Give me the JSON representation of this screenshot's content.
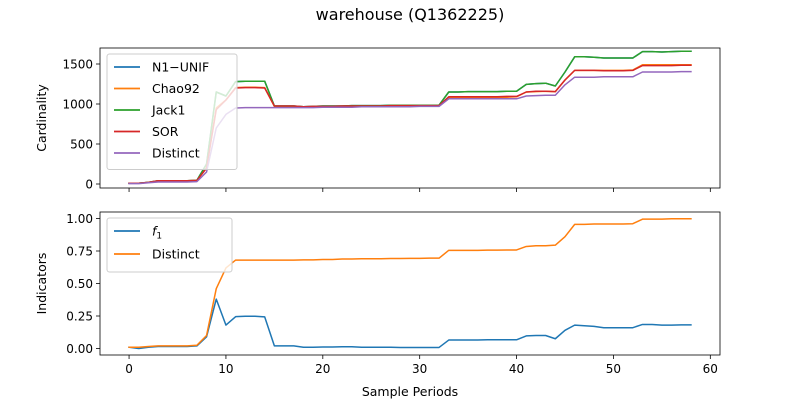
{
  "figure": {
    "title": "warehouse (Q1362225)"
  },
  "chart_data": [
    {
      "type": "line",
      "title": "",
      "xlabel": "",
      "ylabel": "Cardinality",
      "xlim": [
        -3,
        61
      ],
      "ylim": [
        -50,
        1700
      ],
      "xticks": [
        0,
        10,
        20,
        30,
        40,
        50,
        60
      ],
      "xticklabels": [
        "",
        "",
        "",
        "",
        "",
        "",
        ""
      ],
      "yticks": [
        0,
        500,
        1000,
        1500
      ],
      "yticklabels": [
        "0",
        "500",
        "1000",
        "1500"
      ],
      "legend_position": "upper-left",
      "x": [
        0,
        1,
        2,
        3,
        4,
        5,
        6,
        7,
        8,
        9,
        10,
        11,
        12,
        13,
        14,
        15,
        16,
        17,
        18,
        19,
        20,
        21,
        22,
        23,
        24,
        25,
        26,
        27,
        28,
        29,
        30,
        31,
        32,
        33,
        34,
        35,
        36,
        37,
        38,
        39,
        40,
        41,
        42,
        43,
        44,
        45,
        46,
        47,
        48,
        49,
        50,
        51,
        52,
        53,
        54,
        55,
        56,
        57,
        58
      ],
      "series": [
        {
          "name": "N1−UNIF",
          "color": "#1f77b4",
          "values": [
            10,
            10,
            20,
            40,
            40,
            40,
            40,
            45,
            250,
            1150,
            1100,
            1280,
            1285,
            1285,
            1285,
            975,
            975,
            975,
            965,
            970,
            975,
            975,
            975,
            980,
            980,
            980,
            980,
            985,
            985,
            985,
            985,
            985,
            985,
            1150,
            1150,
            1155,
            1155,
            1155,
            1155,
            1160,
            1160,
            1245,
            1255,
            1260,
            1225,
            1400,
            1590,
            1590,
            1585,
            1575,
            1575,
            1575,
            1575,
            1655,
            1655,
            1650,
            1655,
            1660,
            1660
          ]
        },
        {
          "name": "Chao92",
          "color": "#ff7f0e",
          "values": [
            10,
            10,
            20,
            40,
            40,
            40,
            40,
            45,
            200,
            950,
            1050,
            1205,
            1210,
            1210,
            1205,
            970,
            970,
            970,
            965,
            965,
            970,
            970,
            970,
            975,
            975,
            975,
            975,
            975,
            975,
            975,
            975,
            975,
            975,
            1085,
            1085,
            1085,
            1085,
            1085,
            1085,
            1085,
            1090,
            1150,
            1155,
            1160,
            1155,
            1300,
            1420,
            1420,
            1420,
            1420,
            1420,
            1420,
            1425,
            1490,
            1490,
            1490,
            1490,
            1490,
            1490
          ]
        },
        {
          "name": "Jack1",
          "color": "#2ca02c",
          "values": [
            10,
            10,
            20,
            40,
            40,
            40,
            40,
            45,
            250,
            1150,
            1100,
            1280,
            1285,
            1285,
            1285,
            975,
            975,
            975,
            965,
            970,
            975,
            975,
            975,
            980,
            980,
            980,
            980,
            985,
            985,
            985,
            985,
            985,
            985,
            1150,
            1150,
            1155,
            1155,
            1155,
            1155,
            1160,
            1160,
            1245,
            1255,
            1260,
            1225,
            1400,
            1590,
            1590,
            1585,
            1575,
            1575,
            1575,
            1575,
            1655,
            1655,
            1650,
            1655,
            1660,
            1660
          ]
        },
        {
          "name": "SOR",
          "color": "#d62728",
          "values": [
            10,
            10,
            20,
            40,
            40,
            40,
            40,
            45,
            200,
            930,
            1050,
            1200,
            1205,
            1205,
            1200,
            975,
            975,
            975,
            965,
            970,
            970,
            970,
            975,
            975,
            975,
            975,
            975,
            980,
            980,
            980,
            980,
            980,
            980,
            1090,
            1090,
            1090,
            1090,
            1090,
            1090,
            1095,
            1095,
            1150,
            1160,
            1160,
            1155,
            1300,
            1420,
            1420,
            1420,
            1415,
            1415,
            1415,
            1420,
            1480,
            1480,
            1480,
            1480,
            1485,
            1485
          ]
        },
        {
          "name": "Distinct",
          "color": "#9467bd",
          "values": [
            5,
            5,
            15,
            25,
            25,
            25,
            25,
            30,
            150,
            700,
            870,
            950,
            955,
            955,
            955,
            955,
            955,
            955,
            955,
            955,
            960,
            960,
            960,
            960,
            965,
            965,
            965,
            965,
            965,
            965,
            970,
            970,
            970,
            1065,
            1065,
            1065,
            1065,
            1065,
            1065,
            1065,
            1065,
            1100,
            1105,
            1110,
            1110,
            1240,
            1335,
            1335,
            1335,
            1340,
            1340,
            1340,
            1340,
            1400,
            1400,
            1400,
            1400,
            1405,
            1405
          ]
        }
      ]
    },
    {
      "type": "line",
      "title": "",
      "xlabel": "Sample Periods",
      "ylabel": "Indicators",
      "xlim": [
        -3,
        61
      ],
      "ylim": [
        -0.05,
        1.05
      ],
      "xticks": [
        0,
        10,
        20,
        30,
        40,
        50,
        60
      ],
      "xticklabels": [
        "0",
        "10",
        "20",
        "30",
        "40",
        "50",
        "60"
      ],
      "yticks": [
        0,
        0.25,
        0.5,
        0.75,
        1
      ],
      "yticklabels": [
        "0.00",
        "0.25",
        "0.50",
        "0.75",
        "1.00"
      ],
      "legend_position": "upper-left",
      "x": [
        0,
        1,
        2,
        3,
        4,
        5,
        6,
        7,
        8,
        9,
        10,
        11,
        12,
        13,
        14,
        15,
        16,
        17,
        18,
        19,
        20,
        21,
        22,
        23,
        24,
        25,
        26,
        27,
        28,
        29,
        30,
        31,
        32,
        33,
        34,
        35,
        36,
        37,
        38,
        39,
        40,
        41,
        42,
        43,
        44,
        45,
        46,
        47,
        48,
        49,
        50,
        51,
        52,
        53,
        54,
        55,
        56,
        57,
        58
      ],
      "series": [
        {
          "name": "f1",
          "label_main": "f",
          "label_sub": "1",
          "color": "#1f77b4",
          "values": [
            0.01,
            0.0,
            0.01,
            0.015,
            0.015,
            0.015,
            0.015,
            0.02,
            0.09,
            0.38,
            0.18,
            0.245,
            0.248,
            0.248,
            0.243,
            0.02,
            0.02,
            0.02,
            0.01,
            0.01,
            0.012,
            0.012,
            0.013,
            0.013,
            0.01,
            0.01,
            0.01,
            0.01,
            0.008,
            0.008,
            0.008,
            0.008,
            0.008,
            0.065,
            0.065,
            0.065,
            0.065,
            0.067,
            0.067,
            0.067,
            0.067,
            0.097,
            0.1,
            0.1,
            0.075,
            0.14,
            0.18,
            0.175,
            0.17,
            0.16,
            0.16,
            0.16,
            0.16,
            0.185,
            0.185,
            0.18,
            0.18,
            0.182,
            0.182
          ]
        },
        {
          "name": "Distinct",
          "color": "#ff7f0e",
          "values": [
            0.01,
            0.01,
            0.015,
            0.02,
            0.02,
            0.02,
            0.02,
            0.025,
            0.1,
            0.46,
            0.62,
            0.68,
            0.68,
            0.68,
            0.68,
            0.68,
            0.68,
            0.68,
            0.682,
            0.682,
            0.685,
            0.685,
            0.688,
            0.688,
            0.69,
            0.69,
            0.69,
            0.692,
            0.692,
            0.693,
            0.693,
            0.695,
            0.695,
            0.755,
            0.755,
            0.755,
            0.755,
            0.757,
            0.757,
            0.758,
            0.758,
            0.785,
            0.79,
            0.79,
            0.795,
            0.86,
            0.955,
            0.955,
            0.958,
            0.958,
            0.958,
            0.958,
            0.96,
            0.995,
            0.995,
            0.995,
            0.998,
            0.998,
            0.998
          ]
        }
      ]
    }
  ]
}
